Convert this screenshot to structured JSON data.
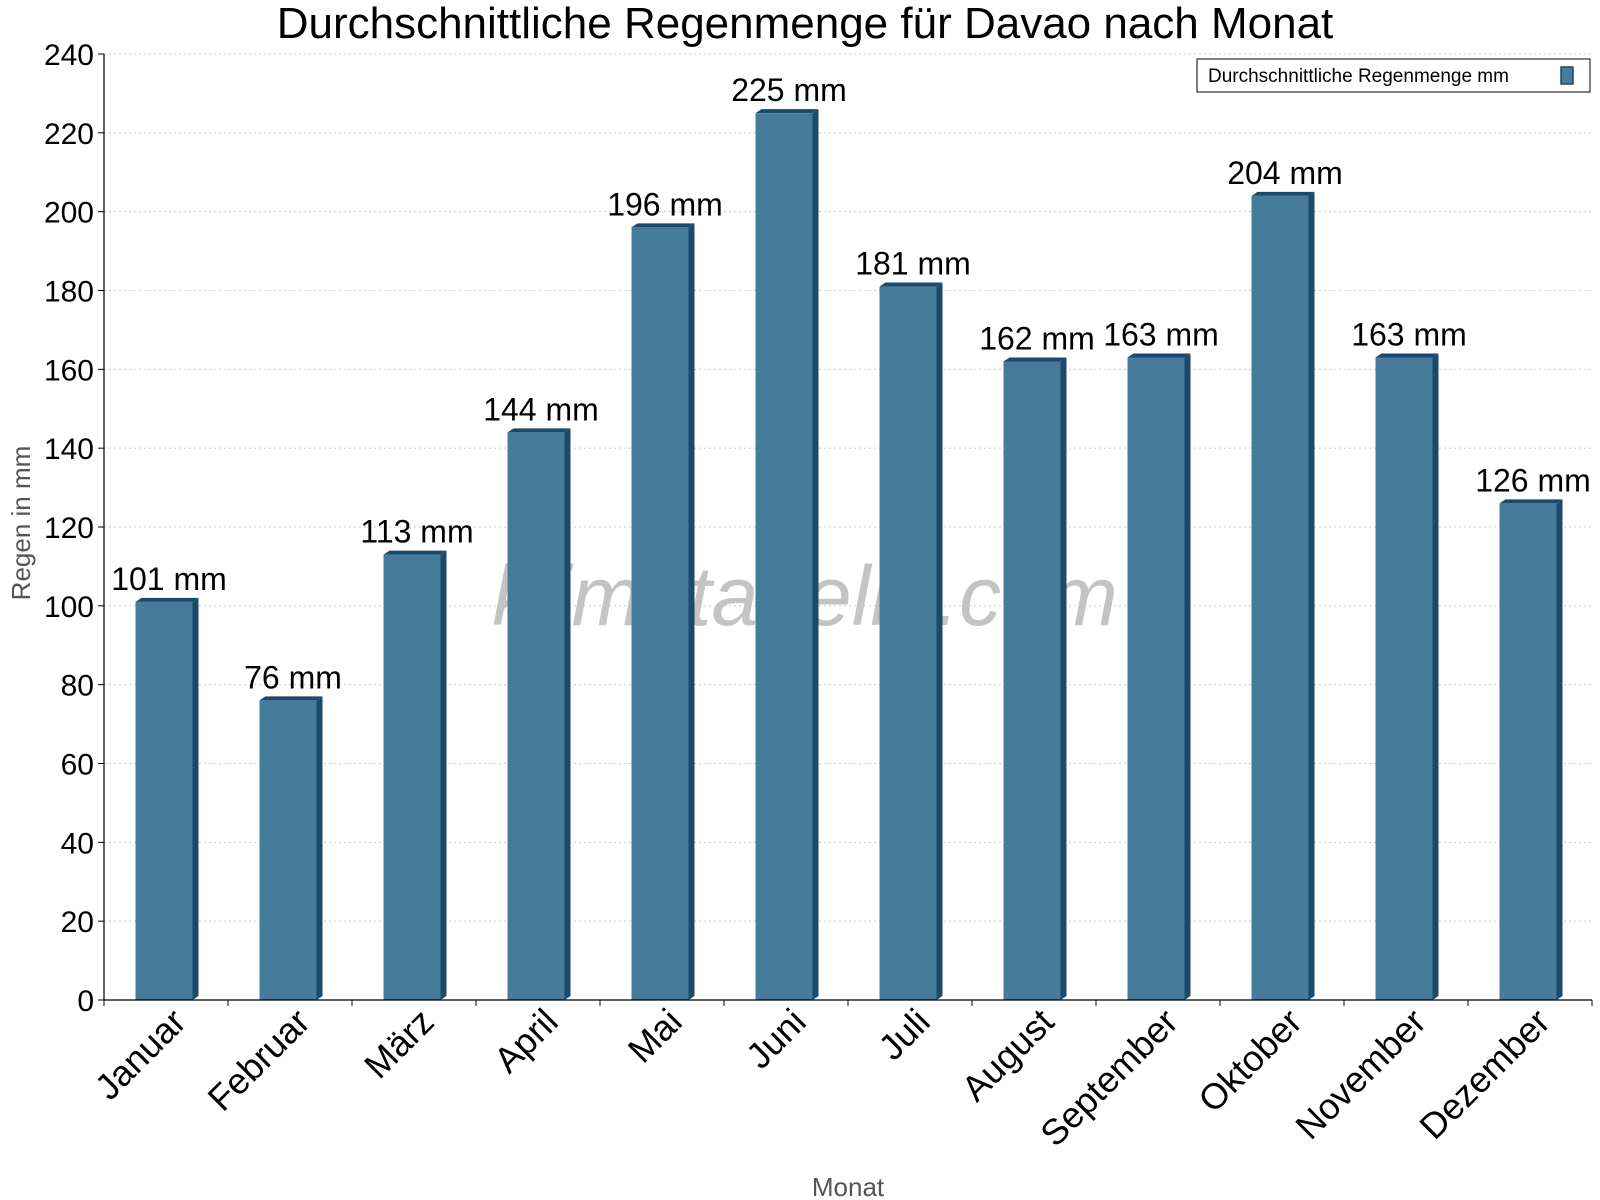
{
  "chart_data": {
    "type": "bar",
    "title": "Durchschnittliche Regenmenge für Davao nach Monat",
    "xlabel": "Monat",
    "ylabel": "Regen in mm",
    "ylim": [
      0,
      240
    ],
    "yticks": [
      0,
      20,
      40,
      60,
      80,
      100,
      120,
      140,
      160,
      180,
      200,
      220,
      240
    ],
    "grid": true,
    "legend_position": "top-right",
    "categories": [
      "Januar",
      "Februar",
      "März",
      "April",
      "Mai",
      "Juni",
      "Juli",
      "August",
      "September",
      "Oktober",
      "November",
      "Dezember"
    ],
    "series": [
      {
        "name": "Durchschnittliche Regenmenge mm",
        "color": "#467b9c",
        "values": [
          101,
          76,
          113,
          144,
          196,
          225,
          181,
          162,
          163,
          204,
          163,
          126
        ],
        "labels": [
          "101 mm",
          "76 mm",
          "113 mm",
          "144 mm",
          "196 mm",
          "225 mm",
          "181 mm",
          "162 mm",
          "163 mm",
          "204 mm",
          "163 mm",
          "126 mm"
        ]
      }
    ]
  },
  "watermark": "klimatabelle.com",
  "colors": {
    "bar": "#467b9c",
    "bar_edge": "#1b4a6b",
    "grid": "#c8c8c8"
  }
}
